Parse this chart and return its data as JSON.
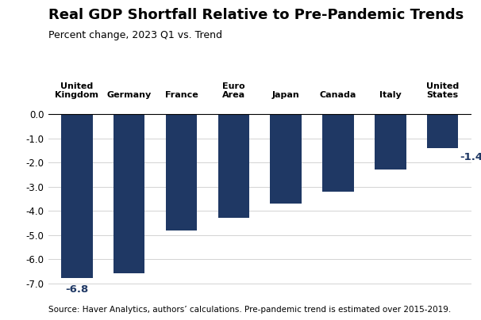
{
  "title": "Real GDP Shortfall Relative to Pre-Pandemic Trends",
  "subtitle": "Percent change, 2023 Q1 vs. Trend",
  "source": "Source: Haver Analytics, authors’ calculations. Pre-pandemic trend is estimated over 2015-2019.",
  "categories": [
    "United\nKingdom",
    "Germany",
    "France",
    "Euro\nArea",
    "Japan",
    "Canada",
    "Italy",
    "United\nStates"
  ],
  "values": [
    -6.8,
    -6.6,
    -4.8,
    -4.3,
    -3.7,
    -3.2,
    -2.3,
    -1.4
  ],
  "bar_color": "#1f3864",
  "ylim": [
    -7.2,
    0.5
  ],
  "yticks": [
    0.0,
    -1.0,
    -2.0,
    -3.0,
    -4.0,
    -5.0,
    -6.0,
    -7.0
  ],
  "annotate_uk": {
    "text": "-6.8"
  },
  "annotate_us": {
    "text": "-1.4"
  },
  "background_color": "#ffffff",
  "title_fontsize": 13,
  "subtitle_fontsize": 9,
  "source_fontsize": 7.5
}
